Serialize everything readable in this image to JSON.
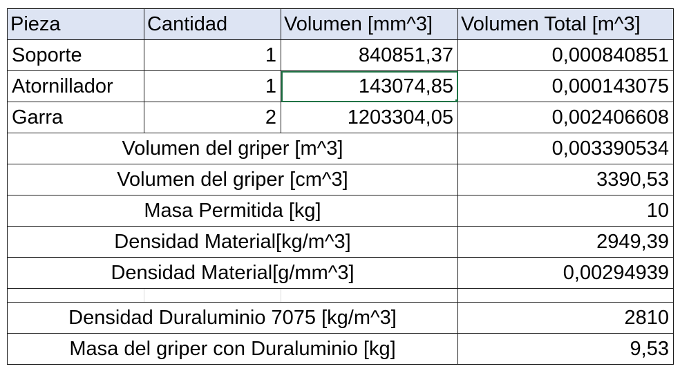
{
  "header": {
    "col_piece": "Pieza",
    "col_qty": "Cantidad",
    "col_volume": "Volumen [mm^3]",
    "col_total": "Volumen Total [m^3]"
  },
  "rows": [
    {
      "piece": "Soporte",
      "qty": "1",
      "volume": "840851,37",
      "total": "0,000840851"
    },
    {
      "piece": "Atornillador",
      "qty": "1",
      "volume": "143074,85",
      "total": "0,000143075"
    },
    {
      "piece": "Garra",
      "qty": "2",
      "volume": "1203304,05",
      "total": "0,002406608"
    }
  ],
  "summary": [
    {
      "label": "Volumen del griper [m^3]",
      "value": "0,003390534"
    },
    {
      "label": "Volumen del griper [cm^3]",
      "value": "3390,53"
    },
    {
      "label": "Masa Permitida [kg]",
      "value": "10"
    },
    {
      "label": "Densidad Material[kg/m^3]",
      "value": "2949,39"
    },
    {
      "label": "Densidad Material[g/mm^3]",
      "value": "0,00294939"
    }
  ],
  "dural": [
    {
      "label": "Densidad Duraluminio 7075 [kg/m^3]",
      "value": "2810"
    },
    {
      "label": "Masa del griper con Duraluminio [kg]",
      "value": "9,53"
    }
  ]
}
